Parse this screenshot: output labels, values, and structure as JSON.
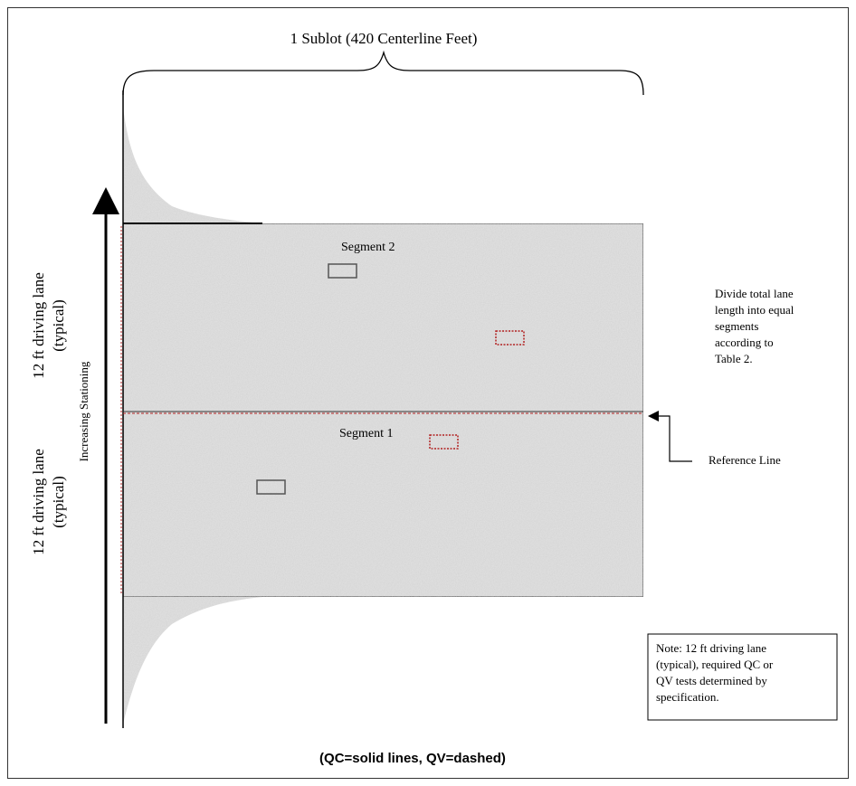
{
  "figure": {
    "brace_label": "1 Sublot (420 Centerline Feet)",
    "left_lane_label_top": {
      "line1": "12 ft driving lane",
      "line2": "(typical)"
    },
    "left_lane_label_bottom": {
      "line1": "12 ft driving lane",
      "line2": "(typical)"
    },
    "stationing_label": "Increasing Stationing",
    "segment_2_label": "Segment 2",
    "segment_1_label": "Segment 1",
    "divide_note": [
      "Divide total lane",
      "length into equal",
      "segments",
      "according to",
      "Table 2."
    ],
    "reference_line_label": "Reference Line",
    "note_box": [
      "Note: 12 ft driving lane",
      "(typical), required QC or",
      "QV tests determined by",
      "specification."
    ],
    "legend_caption": "(QC=solid lines, QV=dashed)"
  },
  "colors": {
    "pavement": "#e3e3e3",
    "qc_box": "#555555",
    "qv_box": "#b22222",
    "line": "#000000"
  }
}
